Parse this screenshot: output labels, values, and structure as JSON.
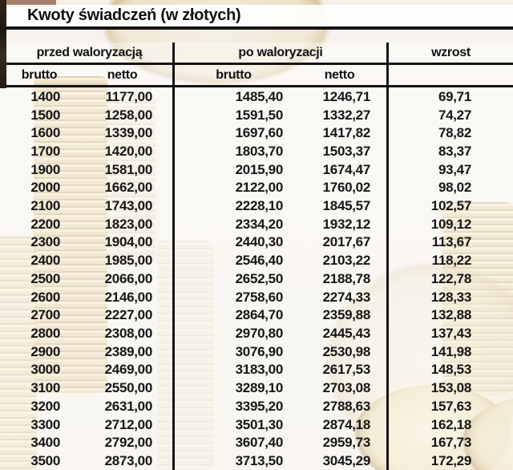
{
  "colors": {
    "line": "#141414",
    "coin_gold": "#d9bf7f",
    "paper": "#f2eee6"
  },
  "chart_data": {
    "type": "table",
    "title": "Kwoty świadczeń (w złotych)",
    "group_headers": [
      "przed waloryzacją",
      "po waloryzacji",
      "wzrost"
    ],
    "sub_headers": [
      "brutto",
      "netto",
      "brutto",
      "netto",
      ""
    ],
    "columns": [
      "przed_brutto",
      "przed_netto",
      "po_brutto",
      "po_netto",
      "wzrost"
    ],
    "rows": [
      [
        "1400",
        "1177,00",
        "1485,40",
        "1246,71",
        "69,71"
      ],
      [
        "1500",
        "1258,00",
        "1591,50",
        "1332,27",
        "74,27"
      ],
      [
        "1600",
        "1339,00",
        "1697,60",
        "1417,82",
        "78,82"
      ],
      [
        "1700",
        "1420,00",
        "1803,70",
        "1503,37",
        "83,37"
      ],
      [
        "1900",
        "1581,00",
        "2015,90",
        "1674,47",
        "93,47"
      ],
      [
        "2000",
        "1662,00",
        "2122,00",
        "1760,02",
        "98,02"
      ],
      [
        "2100",
        "1743,00",
        "2228,10",
        "1845,57",
        "102,57"
      ],
      [
        "2200",
        "1823,00",
        "2334,20",
        "1932,12",
        "109,12"
      ],
      [
        "2300",
        "1904,00",
        "2440,30",
        "2017,67",
        "113,67"
      ],
      [
        "2400",
        "1985,00",
        "2546,40",
        "2103,22",
        "118,22"
      ],
      [
        "2500",
        "2066,00",
        "2652,50",
        "2188,78",
        "122,78"
      ],
      [
        "2600",
        "2146,00",
        "2758,60",
        "2274,33",
        "128,33"
      ],
      [
        "2700",
        "2227,00",
        "2864,70",
        "2359,88",
        "132,88"
      ],
      [
        "2800",
        "2308,00",
        "2970,80",
        "2445,43",
        "137,43"
      ],
      [
        "2900",
        "2389,00",
        "3076,90",
        "2530,98",
        "141,98"
      ],
      [
        "3000",
        "2469,00",
        "3183,00",
        "2617,53",
        "148,53"
      ],
      [
        "3100",
        "2550,00",
        "3289,10",
        "2703,08",
        "153,08"
      ],
      [
        "3200",
        "2631,00",
        "3395,20",
        "2788,63",
        "157,63"
      ],
      [
        "3300",
        "2712,00",
        "3501,30",
        "2874,18",
        "162,18"
      ],
      [
        "3400",
        "2792,00",
        "3607,40",
        "2959,73",
        "167,73"
      ],
      [
        "3500",
        "2873,00",
        "3713,50",
        "3045,29",
        "172,29"
      ]
    ]
  }
}
